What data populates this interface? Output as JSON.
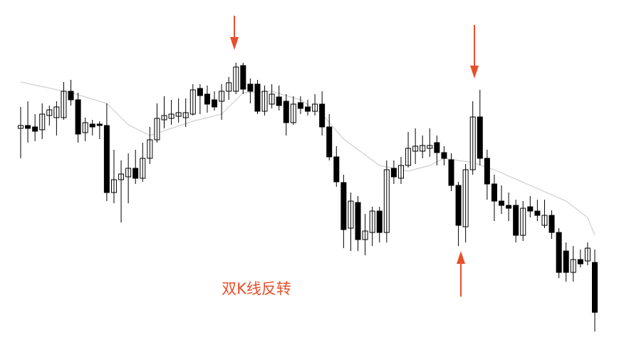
{
  "chart_data": {
    "type": "candlestick",
    "annotation": "双K线反转",
    "annotation_color": "#e8502a",
    "xlim": [
      0,
      80
    ],
    "ylim": [
      0,
      481
    ],
    "up_color": "#ffffff",
    "down_color": "#000000",
    "open": [
      301,
      305,
      303,
      299,
      319,
      316,
      316,
      353,
      341,
      295,
      307,
      307,
      305,
      211,
      229,
      233,
      245,
      231,
      259,
      285,
      313,
      315,
      318,
      316,
      321,
      357,
      349,
      341,
      339,
      353,
      353,
      389,
      363,
      363,
      325,
      335,
      345,
      339,
      309,
      337,
      331,
      325,
      335,
      303,
      261,
      225,
      161,
      197,
      145,
      155,
      185,
      155,
      245,
      231,
      249,
      269,
      269,
      273,
      281,
      267,
      257,
      221,
      163,
      243,
      317,
      259,
      223,
      199,
      193,
      193,
      151,
      191,
      185,
      165,
      179,
      155,
      129,
      99,
      117,
      115,
      113
    ],
    "high": [
      331,
      339,
      321,
      336,
      333,
      339,
      366,
      369,
      351,
      316,
      313,
      311,
      336,
      271,
      256,
      266,
      271,
      281,
      303,
      336,
      346,
      341,
      343,
      343,
      363,
      363,
      361,
      353,
      363,
      373,
      393,
      393,
      371,
      369,
      361,
      363,
      361,
      349,
      346,
      346,
      341,
      349,
      353,
      321,
      276,
      236,
      211,
      206,
      181,
      191,
      191,
      256,
      256,
      261,
      296,
      301,
      291,
      301,
      291,
      276,
      266,
      226,
      251,
      339,
      355,
      271,
      236,
      221,
      211,
      201,
      199,
      206,
      201,
      201,
      186,
      161,
      141,
      136,
      131,
      141,
      131
    ],
    "low": [
      259,
      281,
      283,
      286,
      305,
      291,
      313,
      333,
      281,
      283,
      291,
      286,
      199,
      196,
      169,
      196,
      223,
      226,
      251,
      281,
      301,
      306,
      309,
      303,
      319,
      321,
      323,
      326,
      313,
      341,
      349,
      349,
      336,
      321,
      319,
      329,
      326,
      291,
      306,
      321,
      319,
      319,
      291,
      256,
      219,
      133,
      129,
      129,
      123,
      136,
      141,
      141,
      223,
      223,
      246,
      251,
      259,
      261,
      249,
      249,
      213,
      136,
      141,
      236,
      249,
      201,
      171,
      181,
      171,
      141,
      143,
      176,
      171,
      161,
      146,
      91,
      86,
      86,
      106,
      109,
      16
    ],
    "close": [
      305,
      301,
      297,
      321,
      327,
      331,
      353,
      341,
      293,
      309,
      303,
      305,
      211,
      229,
      237,
      245,
      231,
      259,
      285,
      315,
      319,
      321,
      323,
      323,
      355,
      347,
      335,
      331,
      353,
      365,
      387,
      356,
      353,
      325,
      353,
      349,
      333,
      309,
      335,
      329,
      325,
      335,
      303,
      261,
      226,
      159,
      199,
      145,
      157,
      185,
      155,
      243,
      233,
      249,
      273,
      276,
      277,
      277,
      267,
      259,
      221,
      165,
      243,
      317,
      259,
      223,
      199,
      193,
      189,
      151,
      189,
      185,
      179,
      179,
      155,
      99,
      99,
      117,
      111,
      133,
      43
    ],
    "ma": {
      "color": "#cfcfcf",
      "x": [
        0,
        7,
        12,
        15,
        18,
        21,
        24,
        28,
        31,
        35,
        39,
        42,
        45,
        50,
        54,
        57,
        59,
        63,
        66,
        71,
        76,
        79,
        80
      ],
      "values": [
        366,
        351,
        336,
        306,
        291,
        301,
        311,
        321,
        351,
        353,
        341,
        321,
        286,
        249,
        241,
        249,
        259,
        253,
        243,
        221,
        199,
        176,
        151
      ]
    }
  }
}
